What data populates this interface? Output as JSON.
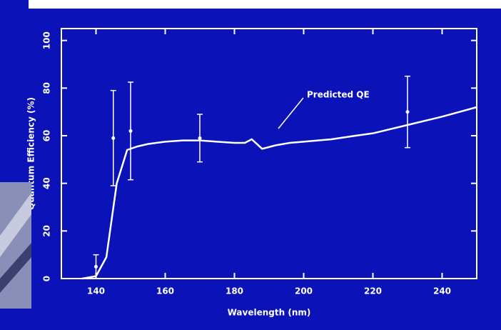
{
  "chart_data": {
    "type": "line",
    "xlabel": "Wavelength (nm)",
    "ylabel": "Quantum Efficiency (%)",
    "xlim": [
      130,
      250
    ],
    "xticks": [
      140,
      160,
      180,
      200,
      220,
      240
    ],
    "ylim": [
      0,
      105
    ],
    "yticks": [
      0,
      20,
      40,
      60,
      80,
      100
    ],
    "series": [
      {
        "name": "Predicted QE",
        "color": "#ffffff",
        "x": [
          136,
          140,
          143,
          146,
          149,
          152,
          155,
          160,
          165,
          170,
          175,
          180,
          183,
          185,
          188,
          192,
          196,
          200,
          208,
          215,
          220,
          230,
          240,
          245,
          250
        ],
        "values": [
          0,
          1,
          9,
          40,
          54,
          55.5,
          56.5,
          57.5,
          58,
          58,
          57.5,
          57,
          57,
          58.5,
          54.5,
          56,
          57,
          57.5,
          58.5,
          60,
          61,
          64.5,
          68,
          70,
          72
        ]
      },
      {
        "type": "scatter",
        "color": "#ffffff",
        "x": [
          140,
          145,
          150,
          170,
          230
        ],
        "values": [
          5,
          59,
          62,
          59,
          70
        ],
        "errors": [
          5,
          20,
          20.5,
          10,
          15
        ]
      }
    ]
  }
}
